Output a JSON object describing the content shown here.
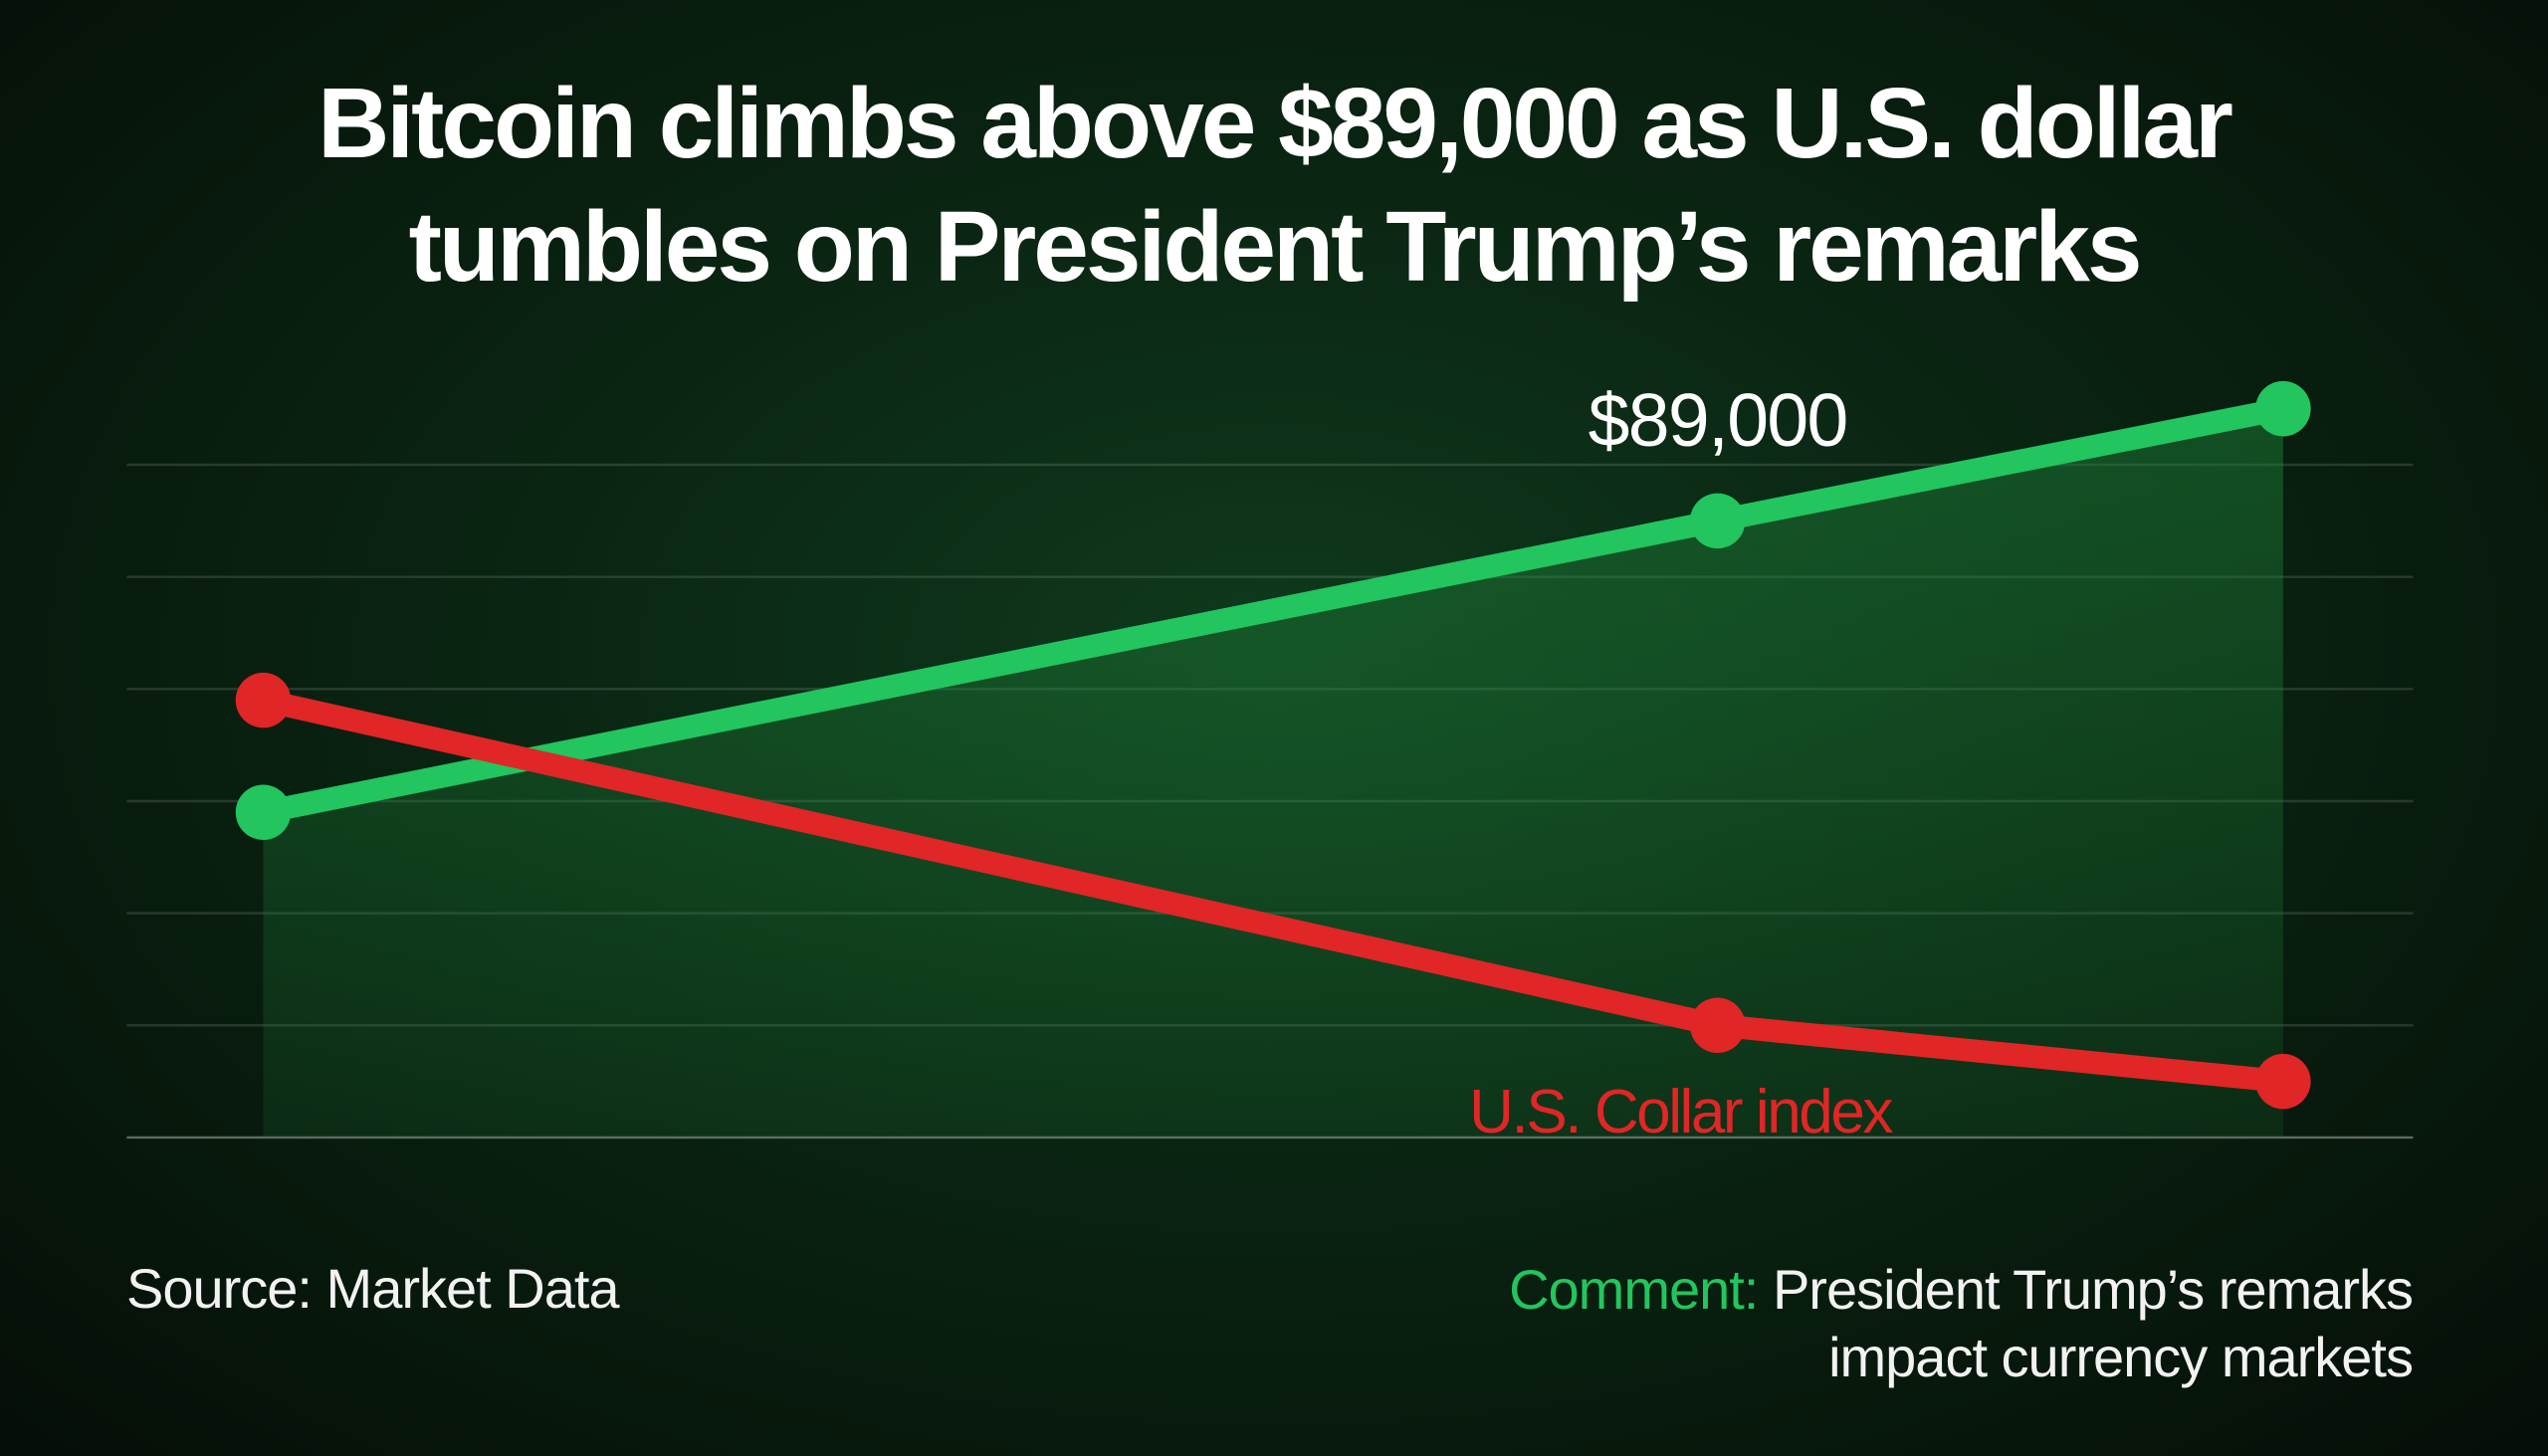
{
  "chart_data": {
    "type": "line",
    "title": "Bitcoin climbs above $89,000 as U.S. dollar tumbles on President Trump’s remarks",
    "x": [
      0,
      72,
      100
    ],
    "xlim": [
      0,
      100
    ],
    "ylim": [
      0,
      6.6
    ],
    "yticks": [
      0,
      1,
      2,
      3,
      4,
      5,
      6
    ],
    "grid": true,
    "series": [
      {
        "color": "#22c55e",
        "values": [
          2.9,
          5.5,
          6.5
        ],
        "area": true
      },
      {
        "name": "U.S. Collar index",
        "color": "#e02626",
        "values": [
          3.9,
          1.0,
          0.5
        ]
      }
    ],
    "annotation": "$89,000",
    "source": "Source: Market Data",
    "comment_label": "Comment:",
    "comment": "President Trump’s remarks impact currency markets"
  }
}
